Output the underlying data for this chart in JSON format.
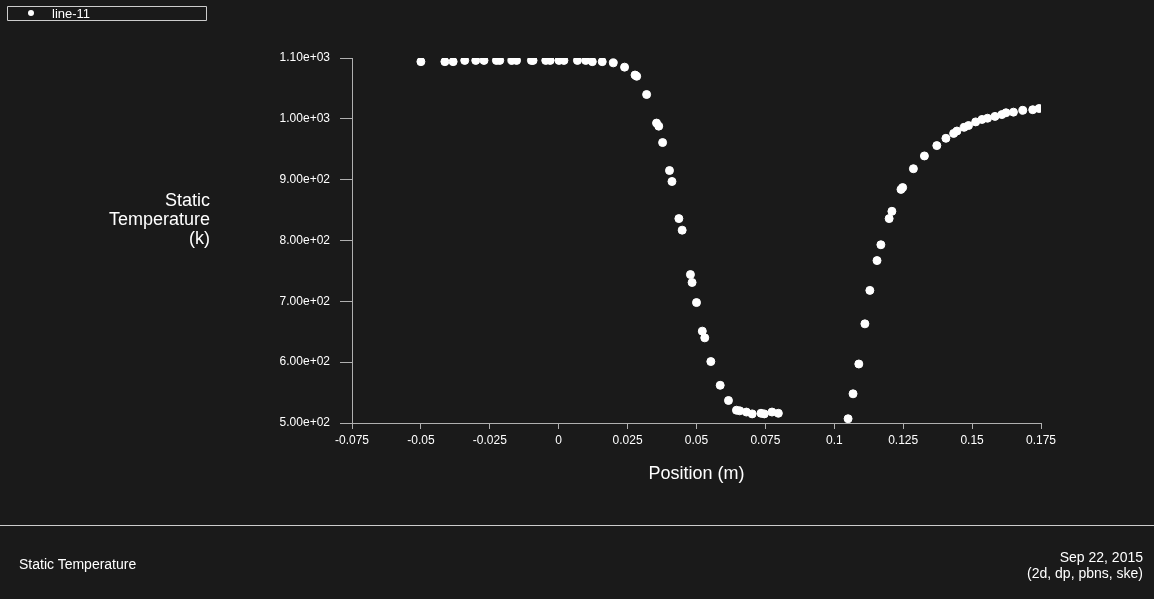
{
  "chart_data": {
    "type": "scatter",
    "title": "Static Temperature",
    "xlabel": "Position (m)",
    "ylabel": "Static Temperature (k)",
    "annotations": [
      "Sep 22, 2015",
      "(2d, dp, pbns, ske)"
    ],
    "xlim": [
      -0.075,
      0.175
    ],
    "xticks": [
      -0.075,
      -0.05,
      -0.025,
      0,
      0.025,
      0.05,
      0.075,
      0.1,
      0.125,
      0.15,
      0.175
    ],
    "ylim": [
      500,
      1100
    ],
    "yticks": [
      {
        "value": 500,
        "label": "5.00e+02"
      },
      {
        "value": 600,
        "label": "6.00e+02"
      },
      {
        "value": 700,
        "label": "7.00e+02"
      },
      {
        "value": 800,
        "label": "8.00e+02"
      },
      {
        "value": 900,
        "label": "9.00e+02"
      },
      {
        "value": 1000,
        "label": "1.00e+03"
      },
      {
        "value": 1100,
        "label": "1.10e+03"
      }
    ],
    "grid": false,
    "legend": "top left",
    "marker": "circle",
    "series": [
      {
        "name": "line-11",
        "color": "#ffffff",
        "x": [
          -0.05,
          -0.0413,
          -0.0383,
          -0.0341,
          -0.0301,
          -0.0271,
          -0.0226,
          -0.0214,
          -0.017,
          -0.0153,
          -0.0099,
          -0.0093,
          -0.0047,
          -0.0031,
          0.0001,
          0.0019,
          0.0068,
          0.0098,
          0.0122,
          0.0158,
          0.0198,
          0.0239,
          0.0277,
          0.0283,
          0.0319,
          0.0355,
          0.0363,
          0.0377,
          0.0402,
          0.0411,
          0.0436,
          0.0448,
          0.0478,
          0.0484,
          0.05,
          0.0521,
          0.053,
          0.0552,
          0.0586,
          0.0616,
          0.0645,
          0.0657,
          0.0681,
          0.0702,
          0.0734,
          0.0746,
          0.0774,
          0.0797,
          0.105,
          0.1068,
          0.1089,
          0.1111,
          0.1129,
          0.1155,
          0.1169,
          0.1199,
          0.1209,
          0.1242,
          0.1248,
          0.1287,
          0.1327,
          0.1372,
          0.1405,
          0.1433,
          0.1445,
          0.1471,
          0.1487,
          0.1513,
          0.1536,
          0.1556,
          0.1583,
          0.1608,
          0.1623,
          0.165,
          0.1684,
          0.172,
          0.1743
        ],
        "values": [
          1094,
          1094,
          1094,
          1096,
          1096,
          1096,
          1096,
          1096,
          1096,
          1096,
          1096,
          1096,
          1096,
          1096,
          1096,
          1096,
          1096,
          1096,
          1094,
          1094,
          1092,
          1085,
          1072,
          1070,
          1040,
          993,
          988,
          961,
          915,
          897,
          836,
          817,
          744,
          731,
          698,
          651,
          640,
          601,
          562,
          537,
          521,
          520,
          518,
          515,
          516,
          515,
          518,
          516,
          507,
          548,
          597,
          663,
          718,
          767,
          793,
          836,
          848,
          884,
          887,
          918,
          939,
          956,
          968,
          976,
          980,
          986,
          989,
          995,
          999,
          1001,
          1004,
          1007,
          1010,
          1011,
          1014,
          1015,
          1017
        ]
      }
    ]
  }
}
